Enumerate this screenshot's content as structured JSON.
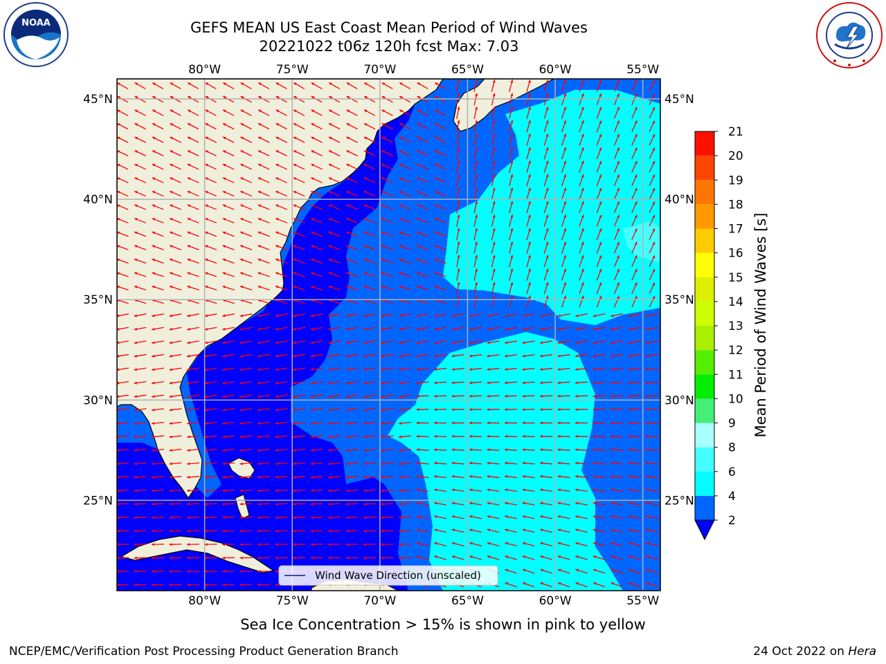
{
  "header": {
    "title_line1": "GEFS MEAN US East Coast Mean Period of Wind Waves",
    "title_line2": "20221022 t06z 120h fcst   Max: 7.03"
  },
  "logos": {
    "left": {
      "name": "noaa-logo",
      "text": "NOAA",
      "ring_text": "NATIONAL OCEANIC AND ATMOSPHERIC ADMINISTRATION · U.S. DEPARTMENT OF COMMERCE"
    },
    "right": {
      "name": "nws-logo",
      "ring_text": "NATIONAL WEATHER SERVICE"
    }
  },
  "map": {
    "lon_range": [
      -85,
      -54
    ],
    "lat_range": [
      20.5,
      46
    ],
    "lon_ticks": [
      -80,
      -75,
      -70,
      -65,
      -60,
      -55
    ],
    "lon_tick_labels": [
      "80°W",
      "75°W",
      "70°W",
      "65°W",
      "60°W",
      "55°W"
    ],
    "lat_ticks": [
      25,
      30,
      35,
      40,
      45
    ],
    "lat_tick_labels": [
      "25°N",
      "30°N",
      "35°N",
      "40°N",
      "45°N"
    ],
    "land_color": "#efefdc",
    "grid_color": "#b0b0b0",
    "arrow_color": "#ff0000",
    "legend_label": "Wind Wave Direction (unscaled)"
  },
  "colorbar": {
    "label": "Mean Period of Wind Waves [s]",
    "levels": [
      2,
      4,
      6,
      8,
      9,
      10,
      11,
      12,
      13,
      14,
      15,
      16,
      17,
      18,
      19,
      20,
      21
    ],
    "colors": [
      "#0066ff",
      "#00ffff",
      "#44ffff",
      "#aaffff",
      "#44ee77",
      "#00ee00",
      "#55ee00",
      "#aaee00",
      "#ccff00",
      "#ddee00",
      "#ffff00",
      "#ffcc00",
      "#ff9900",
      "#ff7700",
      "#ff4400",
      "#ff1100"
    ],
    "under_color": "#0000ff"
  },
  "subtitle": "Sea Ice Concentration > 15% is shown in pink to yellow",
  "footer": {
    "left": "NCEP/EMC/Verification Post Processing Product Generation Branch",
    "date": "24 Oct 2022 on",
    "host": "Hera"
  }
}
